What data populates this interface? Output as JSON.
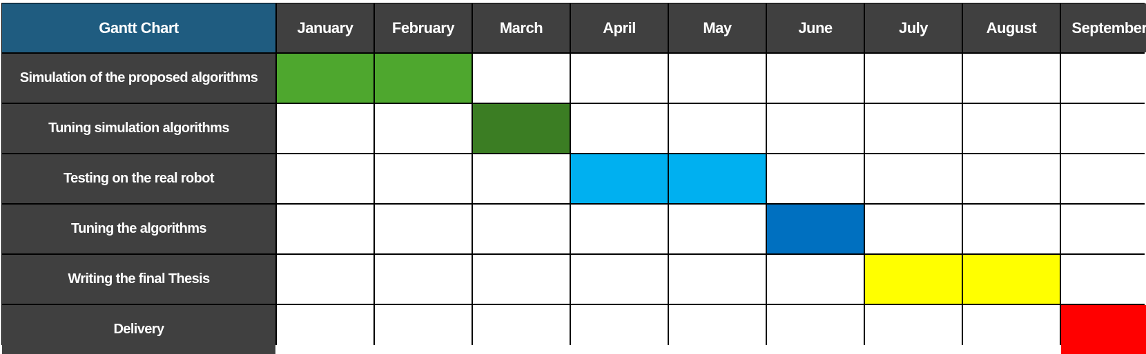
{
  "chart_data": {
    "type": "table",
    "title": "Gantt Chart",
    "months": [
      "January",
      "February",
      "March",
      "April",
      "May",
      "June",
      "July",
      "August",
      "September"
    ],
    "tasks": [
      {
        "name": "Simulation of the proposed algorithms",
        "start": 0,
        "end": 1,
        "color": "#4ea72e"
      },
      {
        "name": "Tuning simulation algorithms",
        "start": 2,
        "end": 2,
        "color": "#3b7d23"
      },
      {
        "name": "Testing on the real robot",
        "start": 3,
        "end": 4,
        "color": "#00b0f0"
      },
      {
        "name": "Tuning the algorithms",
        "start": 5,
        "end": 5,
        "color": "#0070c0"
      },
      {
        "name": "Writing the final Thesis",
        "start": 6,
        "end": 7,
        "color": "#ffff00"
      },
      {
        "name": "Delivery",
        "start": 8,
        "end": 8,
        "color": "#ff0000"
      }
    ]
  },
  "colors": {
    "header_bg": "#404040",
    "corner_bg": "#1f5c80",
    "grid_line": "#000000",
    "empty_cell": "#ffffff"
  }
}
